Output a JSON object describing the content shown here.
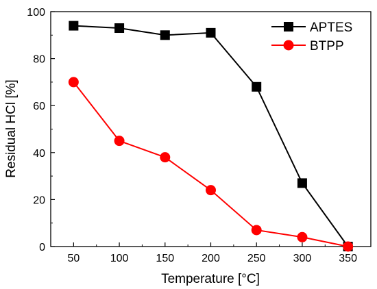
{
  "chart_data": {
    "type": "line",
    "xlabel": "Temperature [°C]",
    "ylabel": "Residual HCl [%]",
    "xlim": [
      25,
      375
    ],
    "ylim": [
      0,
      100
    ],
    "x_ticks": [
      50,
      100,
      150,
      200,
      250,
      300,
      350
    ],
    "y_ticks": [
      0,
      20,
      40,
      60,
      80,
      100
    ],
    "grid": false,
    "legend_position": "top-right",
    "series": [
      {
        "name": "APTES",
        "color": "#000000",
        "marker": "square",
        "x": [
          50,
          100,
          150,
          200,
          250,
          300,
          350
        ],
        "y": [
          94,
          93,
          90,
          91,
          68,
          27,
          0
        ]
      },
      {
        "name": "BTPP",
        "color": "#ff0000",
        "marker": "circle",
        "x": [
          50,
          100,
          150,
          200,
          250,
          300,
          350
        ],
        "y": [
          70,
          45,
          38,
          24,
          7,
          4,
          0
        ]
      }
    ]
  }
}
